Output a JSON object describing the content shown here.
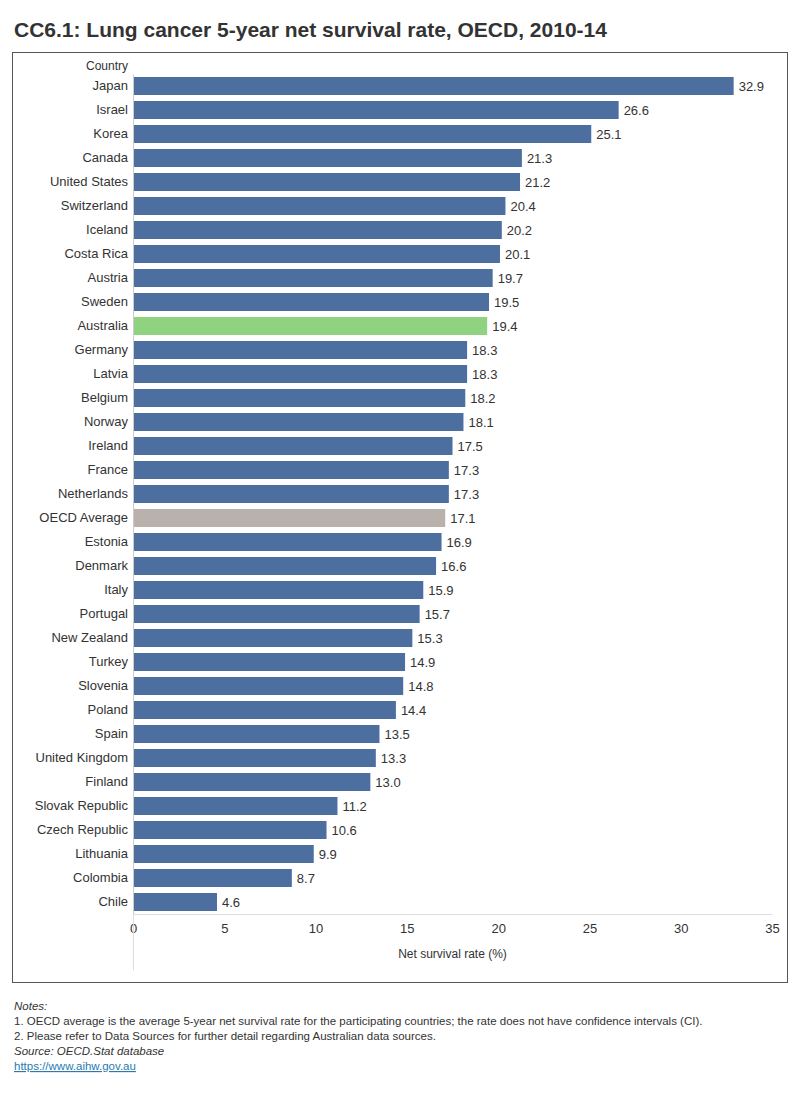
{
  "chart_data": {
    "type": "bar",
    "orientation": "horizontal",
    "title": "CC6.1: Lung cancer 5-year net survival rate, OECD, 2010-14",
    "y_label": "Country",
    "x_label": "Net survival rate (%)",
    "categories": [
      "Japan",
      "Israel",
      "Korea",
      "Canada",
      "United States",
      "Switzerland",
      "Iceland",
      "Costa Rica",
      "Austria",
      "Sweden",
      "Australia",
      "Germany",
      "Latvia",
      "Belgium",
      "Norway",
      "Ireland",
      "France",
      "Netherlands",
      "OECD Average",
      "Estonia",
      "Denmark",
      "Italy",
      "Portugal",
      "New Zealand",
      "Turkey",
      "Slovenia",
      "Poland",
      "Spain",
      "United Kingdom",
      "Finland",
      "Slovak Republic",
      "Czech Republic",
      "Lithuania",
      "Colombia",
      "Chile"
    ],
    "values": [
      32.9,
      26.6,
      25.1,
      21.3,
      21.2,
      20.4,
      20.2,
      20.1,
      19.7,
      19.5,
      19.4,
      18.3,
      18.3,
      18.2,
      18.1,
      17.5,
      17.3,
      17.3,
      17.1,
      16.9,
      16.6,
      15.9,
      15.7,
      15.3,
      14.9,
      14.8,
      14.4,
      13.5,
      13.3,
      13.0,
      11.2,
      10.6,
      9.9,
      8.7,
      4.6
    ],
    "value_labels": [
      "32.9",
      "26.6",
      "25.1",
      "21.3",
      "21.2",
      "20.4",
      "20.2",
      "20.1",
      "19.7",
      "19.5",
      "19.4",
      "18.3",
      "18.3",
      "18.2",
      "18.1",
      "17.5",
      "17.3",
      "17.3",
      "17.1",
      "16.9",
      "16.6",
      "15.9",
      "15.7",
      "15.3",
      "14.9",
      "14.8",
      "14.4",
      "13.5",
      "13.3",
      "13.0",
      "11.2",
      "10.6",
      "9.9",
      "8.7",
      "4.6"
    ],
    "colors": [
      "#4c6f9f",
      "#4c6f9f",
      "#4c6f9f",
      "#4c6f9f",
      "#4c6f9f",
      "#4c6f9f",
      "#4c6f9f",
      "#4c6f9f",
      "#4c6f9f",
      "#4c6f9f",
      "#8fd27f",
      "#4c6f9f",
      "#4c6f9f",
      "#4c6f9f",
      "#4c6f9f",
      "#4c6f9f",
      "#4c6f9f",
      "#4c6f9f",
      "#bab0ac",
      "#4c6f9f",
      "#4c6f9f",
      "#4c6f9f",
      "#4c6f9f",
      "#4c6f9f",
      "#4c6f9f",
      "#4c6f9f",
      "#4c6f9f",
      "#4c6f9f",
      "#4c6f9f",
      "#4c6f9f",
      "#4c6f9f",
      "#4c6f9f",
      "#4c6f9f",
      "#4c6f9f",
      "#4c6f9f"
    ],
    "xlim": [
      0,
      35
    ],
    "xticks": [
      0,
      5,
      10,
      15,
      20,
      25,
      30,
      35
    ],
    "grid": false,
    "data_labels": true,
    "notes_title": "Notes:",
    "notes": [
      "1. OECD average is the average 5-year net survival rate for the participating countries; the rate does not have confidence intervals (CI).",
      "2. Please refer to Data Sources for further detail regarding Australian data sources."
    ],
    "source": "Source: OECD.Stat database",
    "url": "https://www.aihw.gov.au"
  }
}
